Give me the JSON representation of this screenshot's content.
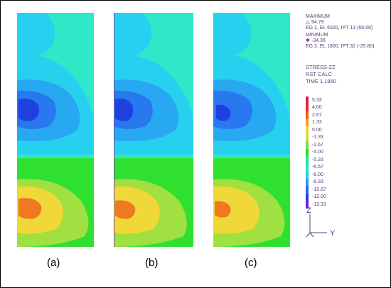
{
  "info": {
    "maximum_label": "MAXIMUM",
    "max_symbol": "△",
    "max_value": "94.79",
    "max_location": "EG 1, EL 6320, IPT 13 (66.68)",
    "minimum_label": "MINIMUM",
    "min_symbol": "✱",
    "min_value": "-34.36",
    "min_location": "EG 2, EL 1800, IPT 32 (-25.80)"
  },
  "result": {
    "quantity": "STRESS-ZZ",
    "calc": "RST CALC",
    "time": "TIME 1.1950"
  },
  "legend": {
    "levels": [
      {
        "value": "5.33",
        "color": "#e01860"
      },
      {
        "value": "4.00",
        "color": "#f02828"
      },
      {
        "value": "2.67",
        "color": "#f06010"
      },
      {
        "value": "1.33",
        "color": "#f8a020"
      },
      {
        "value": "0.00",
        "color": "#f0d838"
      },
      {
        "value": "-1.33",
        "color": "#c8e040"
      },
      {
        "value": "-2.67",
        "color": "#80e040"
      },
      {
        "value": "-4.00",
        "color": "#30d830"
      },
      {
        "value": "-5.33",
        "color": "#20e890"
      },
      {
        "value": "-6.67",
        "color": "#20e8d0"
      },
      {
        "value": "-8.00",
        "color": "#28c8f0"
      },
      {
        "value": "-9.33",
        "color": "#2898f0"
      },
      {
        "value": "-10.67",
        "color": "#2868f0"
      },
      {
        "value": "-12.00",
        "color": "#2838e8"
      },
      {
        "value": "-13.33",
        "color": "#7020d0"
      }
    ]
  },
  "axes": {
    "z_label": "Z",
    "y_label": "Y"
  },
  "panels": [
    {
      "label": "(a)"
    },
    {
      "label": "(b)"
    },
    {
      "label": "(c)"
    }
  ],
  "colors": {
    "teal_bg": "#2ee8c8",
    "cyan": "#28d0f0",
    "light_blue": "#28a8f0",
    "mid_blue": "#2878f0",
    "dark_blue": "#2040e0",
    "green": "#30e030",
    "lime": "#a0e040",
    "yellow": "#f0d838",
    "orange": "#f07820"
  }
}
